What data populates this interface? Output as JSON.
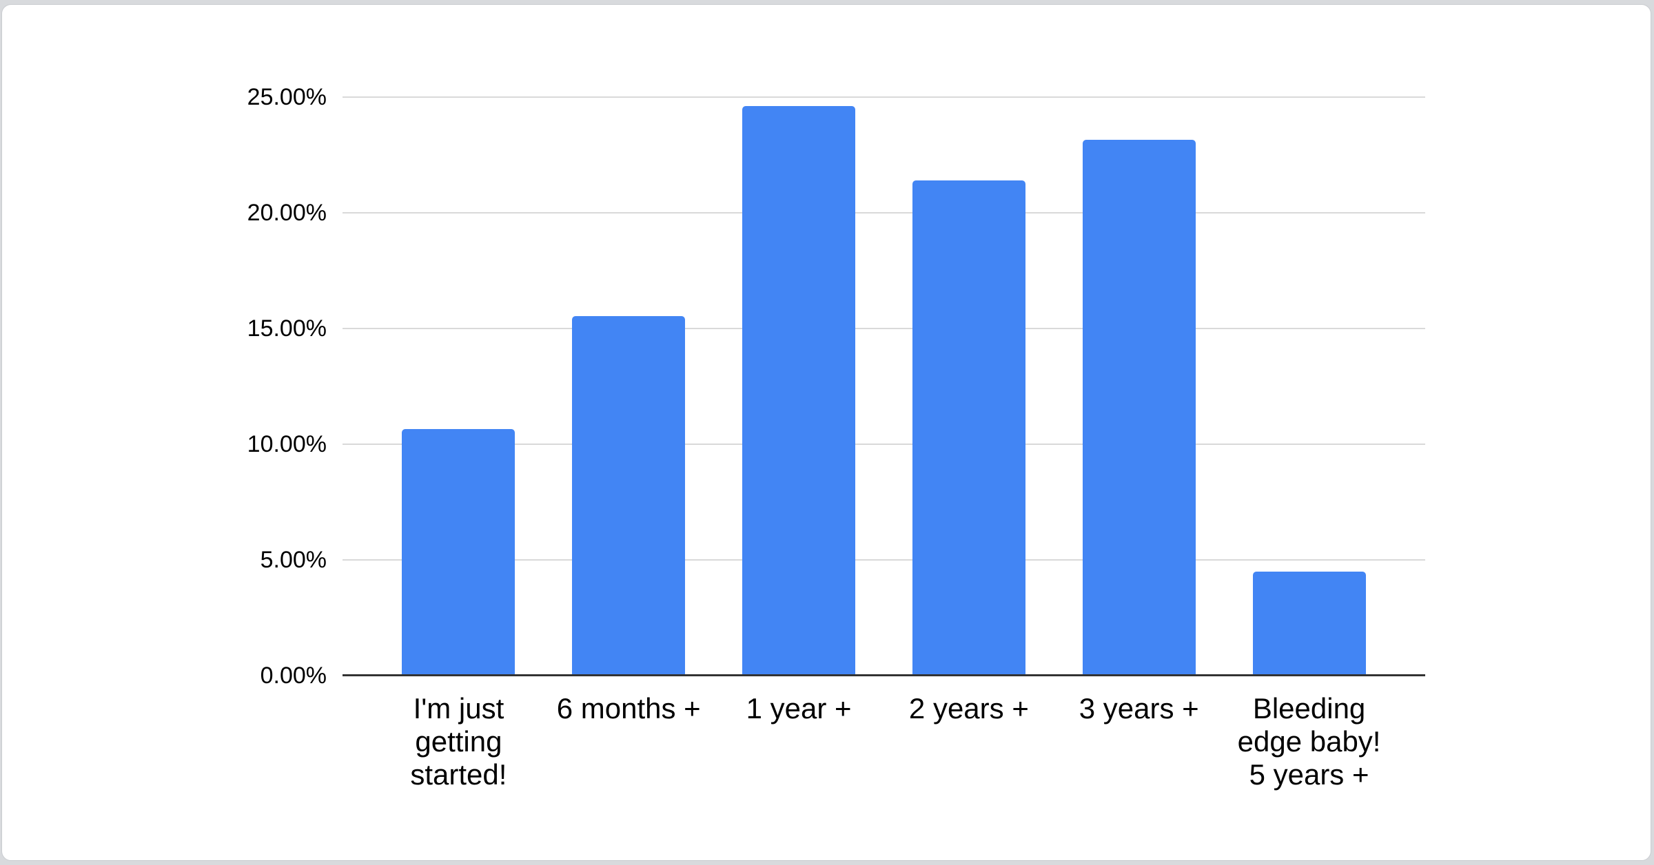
{
  "page": {
    "background_color": "#d8dadd",
    "card_background_color": "#ffffff",
    "card_border_color": "#c9ccd0"
  },
  "chart_data": {
    "type": "bar",
    "title": "",
    "xlabel": "",
    "ylabel": "",
    "categories": [
      "I'm just getting started!",
      "6 months +",
      "1 year +",
      "2 years +",
      "3 years +",
      "Bleeding edge baby! 5 years +"
    ],
    "values": [
      10.65,
      15.55,
      24.6,
      21.4,
      23.15,
      4.5
    ],
    "value_unit": "percent",
    "x_tick_display": [
      "I'm just\ngetting\nstarted!",
      "6 months +",
      "1 year +",
      "2 years +",
      "3 years +",
      "Bleeding\nedge baby!\n5 years +"
    ],
    "y_ticks": [
      "0.00%",
      "5.00%",
      "10.00%",
      "15.00%",
      "20.00%",
      "25.00%"
    ],
    "ylim": [
      0,
      25
    ],
    "y_tick_step": 5,
    "grid": true,
    "legend_position": "none",
    "bar_color": "#4285f4",
    "gridline_color": "#d9d9d9",
    "axis_line_color": "#333333",
    "label_color": "#000000"
  }
}
